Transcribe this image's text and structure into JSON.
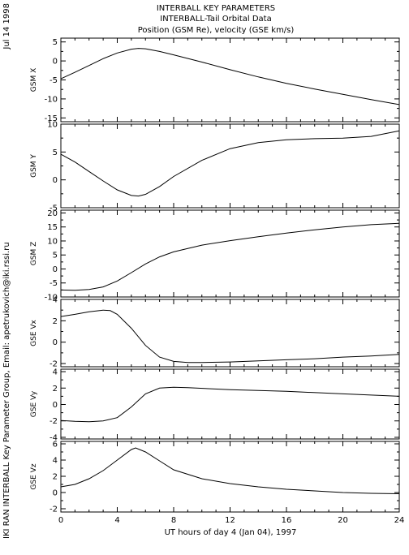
{
  "header": {
    "date": "Jul 14 1998",
    "title_lines": [
      "INTERBALL KEY PARAMETERS",
      "INTERBALL-Tail Orbital Data",
      "Position (GSM Re), velocity (GSE km/s)"
    ],
    "side_credit": "IKI RAN INTERBALL Key Parameter Group, Email: apetrukovich@iki.rssi.ru"
  },
  "chart_data": {
    "type": "line",
    "xlabel": "UT hours of day   4 (Jan 04), 1997",
    "xlim": [
      0,
      24
    ],
    "xticks": [
      0,
      4,
      8,
      12,
      16,
      20,
      24
    ],
    "panels": [
      {
        "ylabel": "GSM X",
        "ylim": [
          -16,
          6
        ],
        "yticks": [
          5,
          0,
          -5,
          -10,
          -15
        ],
        "x": [
          0,
          1,
          2,
          3,
          4,
          5,
          5.5,
          6,
          7,
          8,
          10,
          12,
          14,
          16,
          18,
          20,
          22,
          24
        ],
        "y": [
          -4.7,
          -3.0,
          -1.2,
          0.6,
          2.1,
          3.1,
          3.3,
          3.2,
          2.5,
          1.6,
          -0.3,
          -2.3,
          -4.2,
          -5.9,
          -7.4,
          -8.8,
          -10.2,
          -11.5
        ]
      },
      {
        "ylabel": "GSM Y",
        "ylim": [
          -5,
          10
        ],
        "yticks": [
          10,
          5,
          0,
          -5
        ],
        "x": [
          0,
          1,
          2,
          3,
          4,
          5,
          5.5,
          6,
          7,
          8,
          10,
          12,
          14,
          16,
          18,
          20,
          22,
          24
        ],
        "y": [
          4.6,
          3.2,
          1.5,
          -0.2,
          -1.8,
          -2.8,
          -2.9,
          -2.6,
          -1.2,
          0.6,
          3.5,
          5.6,
          6.7,
          7.2,
          7.4,
          7.5,
          7.8,
          8.8
        ]
      },
      {
        "ylabel": "GSM Z",
        "ylim": [
          -10,
          21
        ],
        "yticks": [
          20,
          15,
          10,
          5,
          0,
          -5,
          -10
        ],
        "x": [
          0,
          1,
          2,
          3,
          4,
          5,
          6,
          7,
          8,
          10,
          12,
          14,
          16,
          18,
          20,
          22,
          24
        ],
        "y": [
          -7.5,
          -7.6,
          -7.3,
          -6.4,
          -4.3,
          -1.3,
          1.8,
          4.3,
          6.1,
          8.5,
          10.1,
          11.5,
          12.8,
          14.0,
          15.0,
          15.8,
          16.3
        ]
      },
      {
        "ylabel": "GSE Vx",
        "ylim": [
          -2.3,
          4
        ],
        "yticks": [
          4,
          2,
          0,
          -2
        ],
        "x": [
          0,
          1,
          2,
          3,
          3.5,
          4,
          5,
          6,
          7,
          8,
          9,
          10,
          12,
          14,
          16,
          18,
          20,
          22,
          24
        ],
        "y": [
          2.4,
          2.6,
          2.85,
          3.0,
          2.95,
          2.6,
          1.3,
          -0.3,
          -1.4,
          -1.8,
          -1.9,
          -1.9,
          -1.85,
          -1.75,
          -1.65,
          -1.55,
          -1.4,
          -1.3,
          -1.15
        ]
      },
      {
        "ylabel": "GSE Vy",
        "ylim": [
          -4.2,
          4.3
        ],
        "yticks": [
          4,
          2,
          0,
          -2,
          -4
        ],
        "x": [
          0,
          1,
          2,
          3,
          4,
          5,
          6,
          7,
          8,
          9,
          12,
          16,
          20,
          24
        ],
        "y": [
          -1.95,
          -2.05,
          -2.1,
          -2.0,
          -1.6,
          -0.3,
          1.3,
          2.0,
          2.1,
          2.05,
          1.8,
          1.6,
          1.3,
          1.0
        ]
      },
      {
        "ylabel": "GSE Vz",
        "ylim": [
          -2.4,
          6.3
        ],
        "yticks": [
          6,
          4,
          2,
          0,
          -2
        ],
        "x": [
          0,
          1,
          2,
          3,
          4,
          5,
          5.3,
          6,
          7,
          8,
          10,
          12,
          14,
          16,
          18,
          20,
          22,
          24
        ],
        "y": [
          0.7,
          1.0,
          1.7,
          2.7,
          4.0,
          5.3,
          5.5,
          5.0,
          3.9,
          2.8,
          1.7,
          1.1,
          0.7,
          0.4,
          0.2,
          0.0,
          -0.1,
          -0.15
        ]
      }
    ]
  }
}
